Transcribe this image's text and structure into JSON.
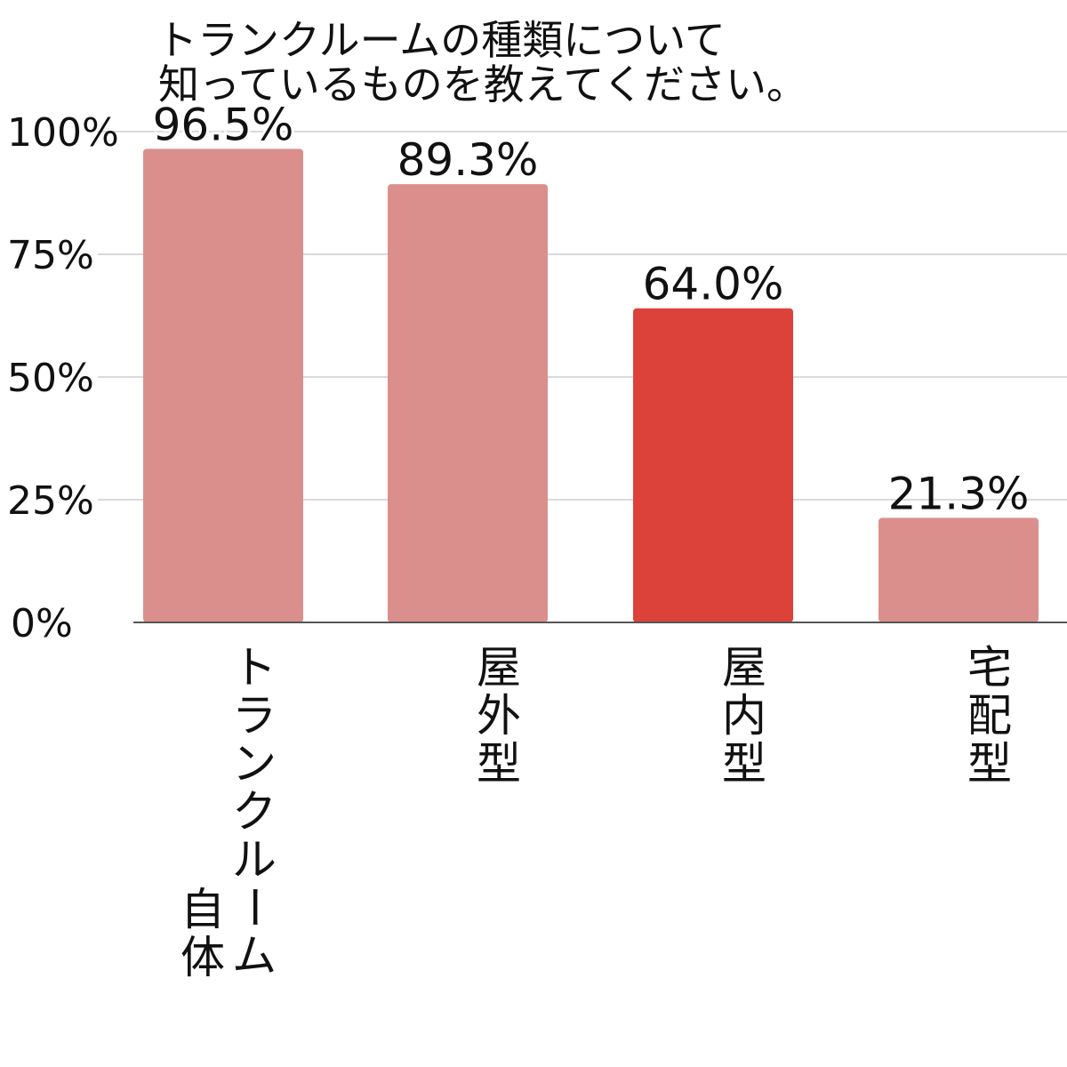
{
  "chart_data": {
    "type": "bar",
    "title_lines": [
      "トランクルームの種類について",
      "知っているものを教えてください。"
    ],
    "categories": [
      [
        "トランクルーム",
        "自体"
      ],
      [
        "屋外型"
      ],
      [
        "屋内型"
      ],
      [
        "宅配型"
      ]
    ],
    "values": [
      96.5,
      89.3,
      64.0,
      21.3
    ],
    "value_labels": [
      "96.5%",
      "89.3%",
      "64.0%",
      "21.3%"
    ],
    "highlight_index": 2,
    "ylim": [
      0,
      100
    ],
    "yticks": [
      0,
      25,
      50,
      75,
      100
    ],
    "ytick_labels": [
      "0%",
      "25%",
      "50%",
      "75%",
      "100%"
    ],
    "grid": true,
    "colors": {
      "bar": "#db8f8d",
      "highlight": "#dc4239",
      "grid": "#d9d9de",
      "axis": "#555555"
    }
  }
}
